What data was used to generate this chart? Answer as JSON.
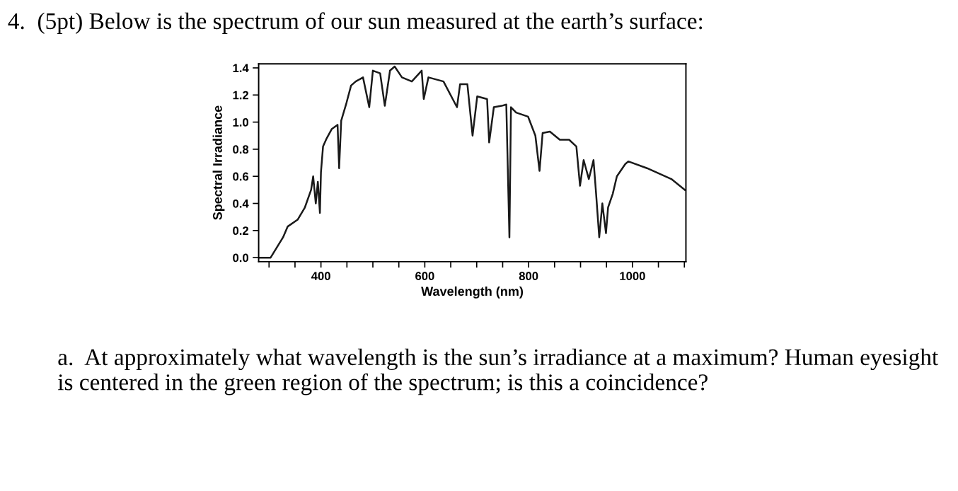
{
  "chart_data": {
    "type": "line",
    "title": "4.  (5pt) Below is the spectrum of our sun measured at the earth’s surface:",
    "xlabel": "Wavelength (nm)",
    "ylabel": "Spectral Irradiance",
    "annotations": [
      "a.  At approximately what wavelength is the sun’s irradiance at a maximum? Human eyesight is centered in the green region of the spectrum; is this a coincidence?"
    ],
    "x": [
      282,
      303,
      327,
      336,
      355,
      369,
      381,
      385,
      390,
      394,
      398,
      400,
      404,
      411,
      421,
      432,
      435,
      439,
      449,
      458,
      467,
      481,
      493,
      500,
      514,
      523,
      533,
      542,
      556,
      575,
      594,
      598,
      607,
      636,
      662,
      668,
      682,
      692,
      701,
      720,
      724,
      733,
      748,
      757,
      763,
      766,
      776,
      799,
      813,
      821,
      827,
      841,
      860,
      878,
      892,
      899,
      906,
      916,
      925,
      930,
      936,
      942,
      949,
      953,
      962,
      970,
      986,
      992,
      1028,
      1075,
      1101
    ],
    "series": [
      {
        "color": "#1a1a1a",
        "values": [
          0,
          0,
          0.15,
          0.23,
          0.28,
          0.37,
          0.5,
          0.6,
          0.4,
          0.56,
          0.33,
          0.63,
          0.82,
          0.88,
          0.95,
          0.98,
          0.66,
          1.01,
          1.14,
          1.27,
          1.3,
          1.33,
          1.11,
          1.38,
          1.36,
          1.12,
          1.38,
          1.41,
          1.33,
          1.3,
          1.38,
          1.17,
          1.33,
          1.3,
          1.11,
          1.28,
          1.28,
          0.9,
          1.19,
          1.17,
          0.85,
          1.11,
          1.12,
          1.13,
          0.15,
          1.11,
          1.07,
          1.04,
          0.9,
          0.64,
          0.92,
          0.93,
          0.87,
          0.87,
          0.82,
          0.53,
          0.72,
          0.58,
          0.72,
          0.47,
          0.15,
          0.4,
          0.18,
          0.37,
          0.47,
          0.6,
          0.69,
          0.71,
          0.66,
          0.58,
          0.5
        ]
      }
    ],
    "xlim": [
      280,
      1103
    ],
    "ylim": [
      -0.03,
      1.43
    ],
    "xticks": [
      {
        "value": 300,
        "label": null
      },
      {
        "value": 350,
        "label": null
      },
      400,
      {
        "value": 450,
        "label": null
      },
      {
        "value": 500,
        "label": null
      },
      {
        "value": 550,
        "label": null
      },
      600,
      {
        "value": 650,
        "label": null
      },
      {
        "value": 700,
        "label": null
      },
      {
        "value": 750,
        "label": null
      },
      800,
      {
        "value": 850,
        "label": null
      },
      {
        "value": 900,
        "label": null
      },
      {
        "value": 950,
        "label": null
      },
      1000,
      {
        "value": 1050,
        "label": null
      },
      {
        "value": 1100,
        "label": null
      }
    ],
    "yticks": [
      {
        "value": 0,
        "label": "0.0"
      },
      {
        "value": 0.2,
        "label": "0.2"
      },
      {
        "value": 0.4,
        "label": "0.4"
      },
      {
        "value": 0.6,
        "label": "0.6"
      },
      {
        "value": 0.8,
        "label": "0.8"
      },
      {
        "value": 1.0,
        "label": "1.0"
      },
      {
        "value": 1.2,
        "label": "1.2"
      },
      {
        "value": 1.4,
        "label": "1.4"
      }
    ],
    "grid": false,
    "marker": "none",
    "line_style": "solid"
  }
}
